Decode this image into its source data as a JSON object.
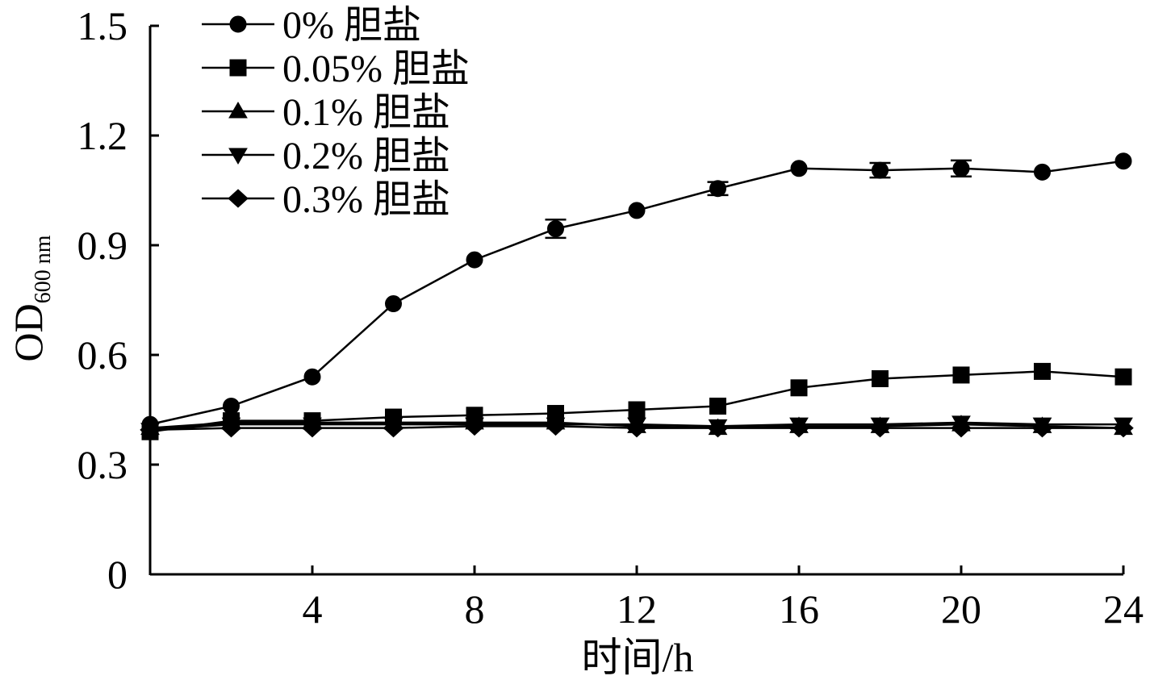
{
  "chart_data": {
    "type": "line",
    "title": "",
    "xlabel": "时间/h",
    "ylabel": {
      "main": "OD",
      "sub": "600 nm"
    },
    "xlim": [
      0,
      24
    ],
    "ylim": [
      0,
      1.5
    ],
    "xticks": [
      4,
      8,
      12,
      16,
      20,
      24
    ],
    "xtick_labels": [
      "4",
      "8",
      "12",
      "16",
      "20",
      "24"
    ],
    "yticks": [
      0,
      0.3,
      0.6,
      0.9,
      1.2,
      1.5
    ],
    "ytick_labels": [
      "0",
      "0.3",
      "0.6",
      "0.9",
      "1.2",
      "1.5"
    ],
    "grid": false,
    "legend_position": "top-left",
    "x": [
      0,
      2,
      4,
      6,
      8,
      10,
      12,
      14,
      16,
      18,
      20,
      22,
      24
    ],
    "series": [
      {
        "name": "0% 胆盐",
        "marker": "circle",
        "values": [
          0.41,
          0.46,
          0.54,
          0.74,
          0.86,
          0.945,
          0.995,
          1.055,
          1.11,
          1.105,
          1.11,
          1.1,
          1.13
        ],
        "errors": [
          0,
          0,
          0,
          0,
          0,
          0.025,
          0,
          0.018,
          0,
          0.02,
          0.022,
          0,
          0
        ]
      },
      {
        "name": "0.05% 胆盐",
        "marker": "square",
        "values": [
          0.39,
          0.42,
          0.42,
          0.43,
          0.435,
          0.44,
          0.45,
          0.46,
          0.51,
          0.535,
          0.545,
          0.555,
          0.54
        ]
      },
      {
        "name": "0.1% 胆盐",
        "marker": "triangle-up",
        "values": [
          0.4,
          0.415,
          0.415,
          0.415,
          0.415,
          0.415,
          0.405,
          0.4,
          0.405,
          0.405,
          0.41,
          0.405,
          0.4
        ]
      },
      {
        "name": "0.2% 胆盐",
        "marker": "triangle-down",
        "values": [
          0.395,
          0.41,
          0.41,
          0.41,
          0.41,
          0.41,
          0.41,
          0.405,
          0.41,
          0.41,
          0.415,
          0.41,
          0.41
        ]
      },
      {
        "name": "0.3% 胆盐",
        "marker": "diamond",
        "values": [
          0.395,
          0.4,
          0.4,
          0.4,
          0.405,
          0.405,
          0.4,
          0.4,
          0.4,
          0.4,
          0.4,
          0.4,
          0.4
        ]
      }
    ]
  }
}
